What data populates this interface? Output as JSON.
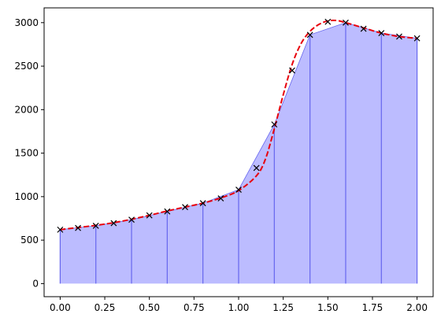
{
  "chart_data": {
    "type": "area",
    "title": "",
    "xlabel": "",
    "ylabel": "",
    "xlim": [
      -0.09,
      2.09
    ],
    "ylim": [
      -150,
      3170
    ],
    "grid": false,
    "x_ticks": [
      "0.00",
      "0.25",
      "0.50",
      "0.75",
      "1.00",
      "1.25",
      "1.50",
      "1.75",
      "2.00"
    ],
    "y_ticks": [
      "0",
      "500",
      "1000",
      "1500",
      "2000",
      "2500",
      "3000"
    ],
    "markers": {
      "x": [
        0.0,
        0.1,
        0.2,
        0.3,
        0.4,
        0.5,
        0.6,
        0.7,
        0.8,
        0.9,
        1.0,
        1.1,
        1.2,
        1.3,
        1.4,
        1.5,
        1.6,
        1.7,
        1.8,
        1.9,
        2.0
      ],
      "y": [
        620,
        640,
        665,
        695,
        735,
        785,
        830,
        880,
        925,
        980,
        1080,
        1330,
        1830,
        2450,
        2860,
        3010,
        3000,
        2930,
        2880,
        2840,
        2820
      ],
      "color": "#000000",
      "style": "x"
    },
    "fit_curve": {
      "x": [
        0.0,
        0.1,
        0.2,
        0.3,
        0.4,
        0.5,
        0.6,
        0.7,
        0.8,
        0.9,
        1.0,
        1.1,
        1.15,
        1.2,
        1.25,
        1.3,
        1.35,
        1.4,
        1.45,
        1.5,
        1.55,
        1.6,
        1.7,
        1.8,
        1.9,
        2.0
      ],
      "y": [
        620,
        645,
        670,
        700,
        740,
        785,
        835,
        880,
        925,
        985,
        1070,
        1240,
        1430,
        1780,
        2170,
        2520,
        2760,
        2900,
        2980,
        3020,
        3025,
        3000,
        2940,
        2880,
        2840,
        2820
      ],
      "color": "#e8000b",
      "style": "dashed"
    },
    "area": {
      "x": [
        0.0,
        0.2,
        0.4,
        0.6,
        0.8,
        1.0,
        1.2,
        1.4,
        1.6,
        1.8,
        2.0
      ],
      "y": [
        620,
        665,
        735,
        830,
        925,
        1080,
        1830,
        2860,
        3000,
        2880,
        2820
      ],
      "fill_color": "#bcbcff",
      "edge_color": "#6666ee",
      "baseline": 0
    }
  }
}
